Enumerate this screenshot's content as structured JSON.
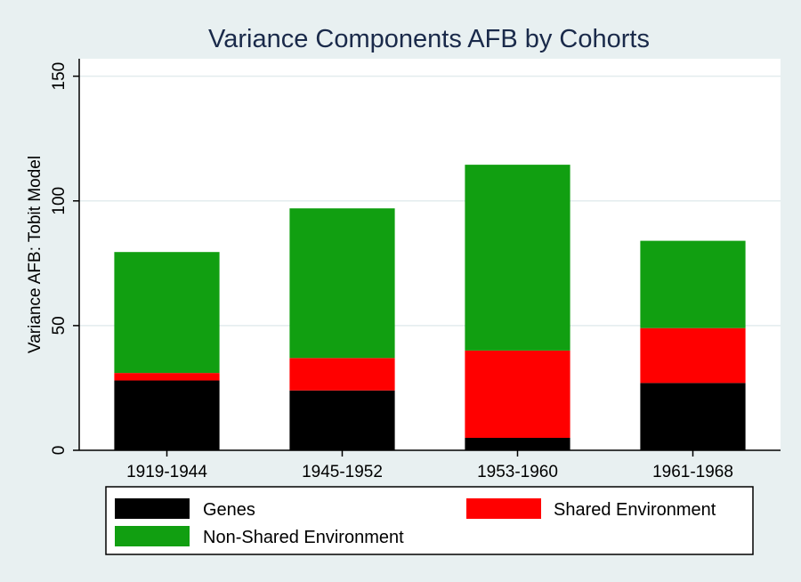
{
  "colors": {
    "background": "#e8f0f1",
    "plot_background": "#ffffff",
    "gridline": "#e3ecee",
    "title": "#1a2a4a"
  },
  "chart_data": {
    "type": "bar",
    "stacked": true,
    "title": "Variance Components AFB by Cohorts",
    "ylabel": "Variance AFB: Tobit Model",
    "xlabel": "",
    "ylim": [
      0,
      157
    ],
    "yticks": [
      0,
      50,
      100,
      150
    ],
    "grid": true,
    "legend_position": "bottom",
    "categories": [
      "1919-1944",
      "1945-1952",
      "1953-1960",
      "1961-1968"
    ],
    "series": [
      {
        "name": "Genes",
        "color": "#000000",
        "values": [
          28,
          24,
          5,
          27
        ]
      },
      {
        "name": "Shared Environment",
        "color": "#ff0000",
        "values": [
          3,
          13,
          35,
          22
        ]
      },
      {
        "name": "Non-Shared Environment",
        "color": "#119f11",
        "values": [
          48.5,
          60,
          74.5,
          35
        ]
      }
    ]
  }
}
